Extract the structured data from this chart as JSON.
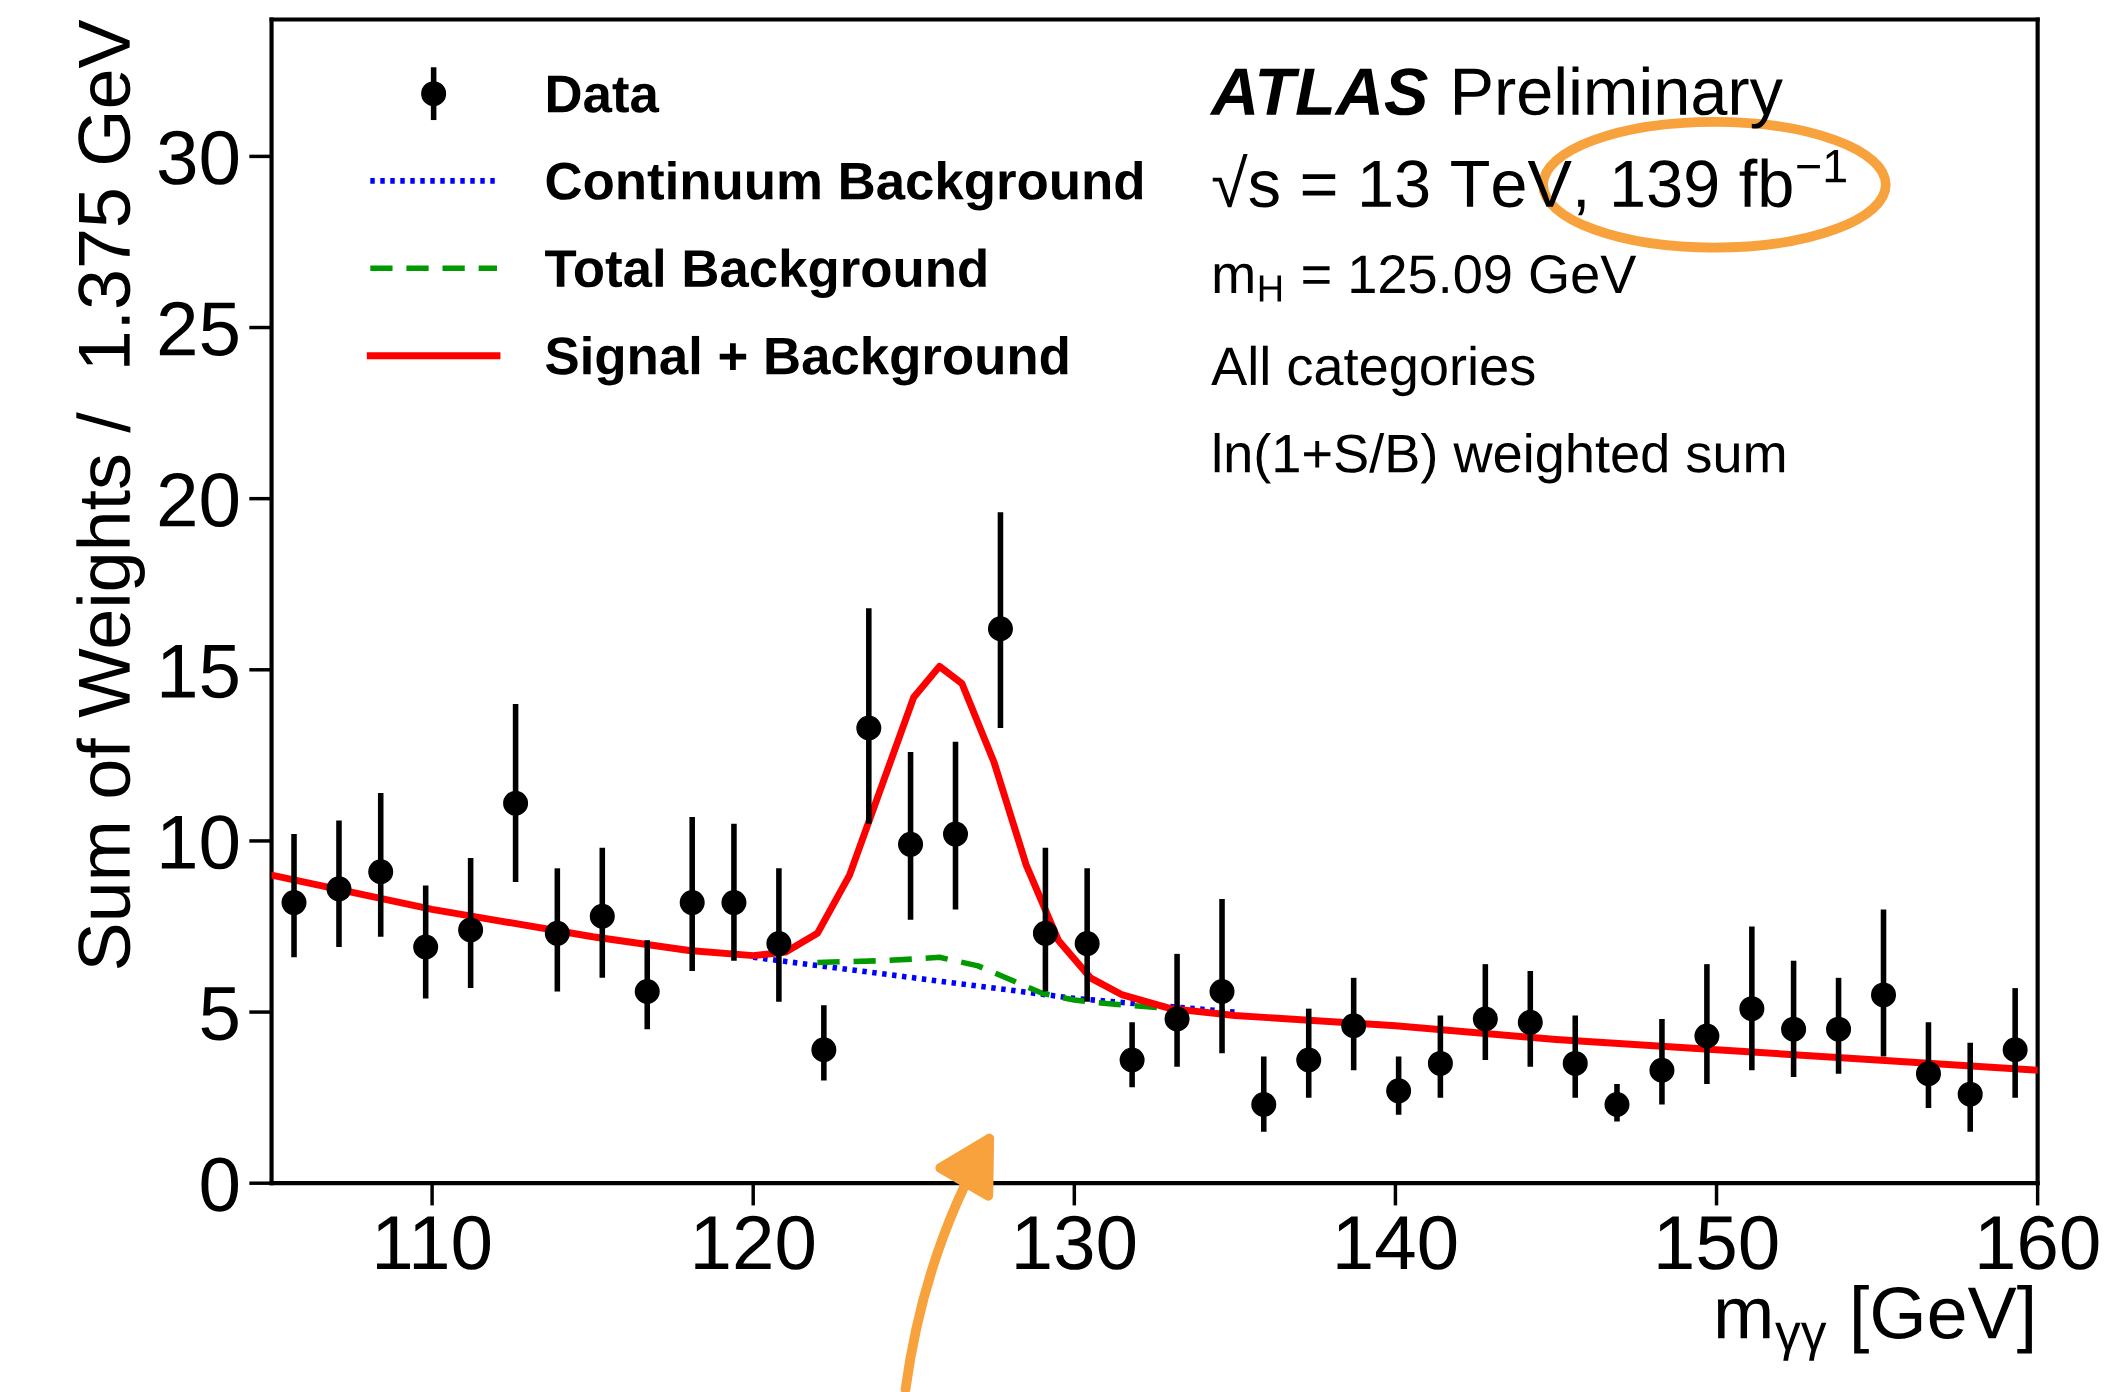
{
  "chart_data": {
    "type": "scatter",
    "xlabel": "m$_{γγ}$ [GeV]",
    "ylabel": "Sum of Weights /  1.375 GeV",
    "annotations": [
      "ATLAS Preliminary",
      "√s = 13 TeV, 139 fb$^{−1}$",
      "m$_{H}$ = 125.09 GeV",
      "All categories",
      "ln(1+S/B) weighted sum"
    ],
    "xlim": [
      105,
      160
    ],
    "xticks": [
      110,
      120,
      130,
      140,
      150,
      160
    ],
    "ylim": [
      0,
      34
    ],
    "yticks": [
      0,
      5,
      10,
      15,
      20,
      25,
      30
    ],
    "grid": false,
    "legend": "top left",
    "series": [
      {
        "name": "Data",
        "color": "#000000",
        "marker": "circle",
        "x": [
          105.7,
          107.1,
          108.4,
          109.8,
          111.2,
          112.6,
          113.9,
          115.3,
          116.7,
          118.1,
          119.4,
          120.8,
          122.2,
          123.6,
          124.9,
          126.3,
          127.7,
          129.1,
          130.4,
          131.8,
          133.2,
          134.6,
          135.9,
          137.3,
          138.7,
          140.1,
          141.4,
          142.8,
          144.2,
          145.6,
          146.9,
          148.3,
          149.7,
          151.1,
          152.4,
          153.8,
          155.2,
          156.6,
          157.9,
          159.3
        ],
        "values": [
          8.2,
          8.6,
          9.1,
          6.9,
          7.4,
          11.1,
          7.3,
          7.8,
          5.6,
          8.2,
          8.2,
          7.0,
          3.9,
          13.3,
          9.9,
          10.2,
          16.2,
          7.3,
          7.0,
          3.6,
          4.8,
          5.6,
          2.3,
          3.6,
          4.6,
          2.7,
          3.5,
          4.8,
          4.7,
          3.5,
          2.3,
          3.3,
          4.3,
          5.1,
          4.5,
          4.5,
          5.5,
          3.2,
          2.6,
          3.9
        ],
        "errors": [
          [
            6.6,
            10.2
          ],
          [
            6.9,
            10.6
          ],
          [
            7.2,
            11.4
          ],
          [
            5.4,
            8.7
          ],
          [
            5.7,
            9.5
          ],
          [
            8.8,
            14.0
          ],
          [
            5.6,
            9.2
          ],
          [
            6.0,
            9.8
          ],
          [
            4.5,
            7.1
          ],
          [
            6.2,
            10.7
          ],
          [
            6.5,
            10.5
          ],
          [
            5.3,
            9.2
          ],
          [
            3.0,
            5.2
          ],
          [
            10.5,
            16.8
          ],
          [
            7.7,
            12.6
          ],
          [
            8.0,
            12.9
          ],
          [
            13.3,
            19.6
          ],
          [
            5.6,
            9.8
          ],
          [
            5.3,
            9.2
          ],
          [
            2.8,
            4.7
          ],
          [
            3.4,
            6.7
          ],
          [
            3.8,
            8.3
          ],
          [
            1.5,
            3.7
          ],
          [
            2.5,
            5.1
          ],
          [
            3.3,
            6.0
          ],
          [
            2.0,
            3.7
          ],
          [
            2.5,
            4.9
          ],
          [
            3.6,
            6.4
          ],
          [
            3.4,
            6.2
          ],
          [
            2.5,
            4.9
          ],
          [
            1.8,
            2.9
          ],
          [
            2.3,
            4.8
          ],
          [
            2.9,
            6.4
          ],
          [
            3.3,
            7.5
          ],
          [
            3.1,
            6.5
          ],
          [
            3.2,
            6.0
          ],
          [
            3.7,
            8.0
          ],
          [
            2.2,
            4.7
          ],
          [
            1.5,
            4.1
          ],
          [
            2.5,
            5.7
          ]
        ]
      },
      {
        "name": "Continuum Background",
        "type": "line",
        "color": "#0000ff",
        "line_style": "dotted",
        "marker": "none",
        "x": [
          120,
          125,
          130,
          135
        ],
        "values": [
          6.6,
          6.0,
          5.4,
          5.0
        ]
      },
      {
        "name": "Total Background",
        "type": "line",
        "color": "#009900",
        "line_style": "dashed",
        "marker": "none",
        "x": [
          122,
          124,
          125,
          125.8,
          127,
          128,
          129,
          130,
          131,
          133
        ],
        "values": [
          6.45,
          6.5,
          6.55,
          6.6,
          6.35,
          5.95,
          5.55,
          5.35,
          5.25,
          5.1
        ]
      },
      {
        "name": "Signal + Background",
        "type": "line",
        "color": "#ff0000",
        "line_style": "solid",
        "marker": "none",
        "x": [
          105,
          110,
          115,
          118,
          120,
          121,
          122,
          123,
          124,
          125,
          125.8,
          126.5,
          127.5,
          128.5,
          129.5,
          130.5,
          131.5,
          133,
          135,
          140,
          145,
          150,
          155,
          160
        ],
        "values": [
          9.0,
          8.0,
          7.2,
          6.8,
          6.65,
          6.75,
          7.3,
          9.0,
          11.6,
          14.2,
          15.1,
          14.6,
          12.3,
          9.3,
          7.1,
          6.0,
          5.5,
          5.1,
          4.9,
          4.6,
          4.2,
          3.9,
          3.6,
          3.3
        ]
      }
    ]
  }
}
